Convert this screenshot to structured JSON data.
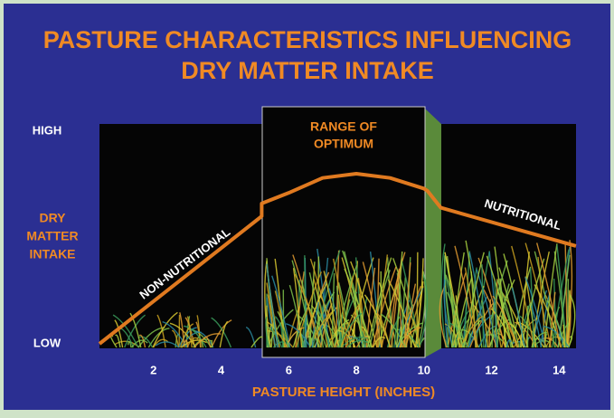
{
  "chart_data": {
    "type": "line",
    "title": [
      "PASTURE CHARACTERISTICS INFLUENCING",
      "DRY MATTER INTAKE"
    ],
    "x_label": "PASTURE HEIGHT (INCHES)",
    "y_label": [
      "DRY",
      "MATTER",
      "INTAKE"
    ],
    "xlim": [
      0.4,
      14.5
    ],
    "xticks": [
      2,
      4,
      6,
      8,
      10,
      12,
      14
    ],
    "ylim": [
      0,
      1
    ],
    "yticks": [
      {
        "value": 0,
        "label": "LOW"
      },
      {
        "value": 1,
        "label": "HIGH"
      }
    ],
    "series": [
      {
        "color": "#e07a20",
        "x": [
          0.4,
          5.2,
          5.2,
          6,
          7,
          8,
          9,
          10,
          10.1,
          10.5,
          14.5
        ],
        "values": [
          0,
          0.6,
          0.66,
          0.71,
          0.78,
          0.8,
          0.78,
          0.73,
          0.72,
          0.64,
          0.46
        ]
      }
    ],
    "annotations": {
      "optimum": [
        "RANGE OF",
        "OPTIMUM"
      ],
      "left": "NON-NUTRITIONAL",
      "right": "NUTRITIONAL"
    }
  }
}
